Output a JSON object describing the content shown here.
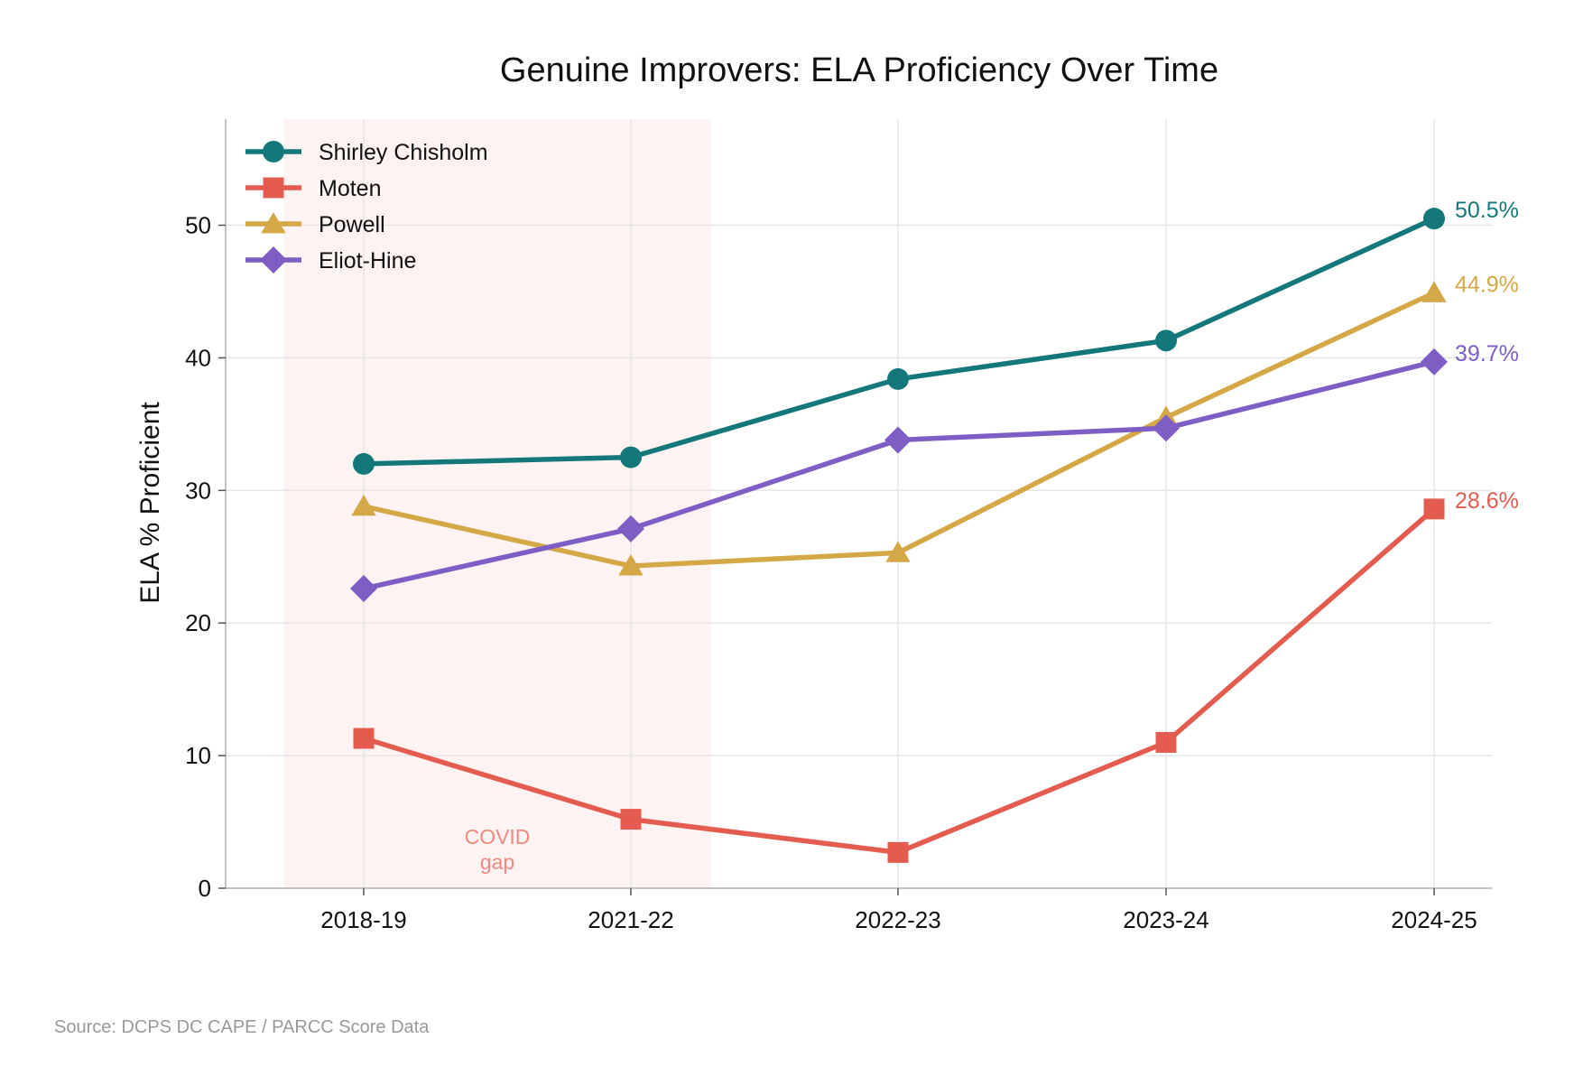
{
  "chart_data": {
    "type": "line",
    "title": "Genuine Improvers: ELA Proficiency Over Time",
    "xlabel": "",
    "ylabel": "ELA % Proficient",
    "categories": [
      "2018-19",
      "2021-22",
      "2022-23",
      "2023-24",
      "2024-25"
    ],
    "ylim": [
      0,
      58
    ],
    "yticks": [
      0,
      10,
      20,
      30,
      40,
      50
    ],
    "grid": true,
    "legend_position": "top-left",
    "series": [
      {
        "name": "Shirley Chisholm",
        "values": [
          32.0,
          32.5,
          38.4,
          41.3,
          50.5
        ],
        "color": "#14787a",
        "marker": "circle",
        "end_label": "50.5%"
      },
      {
        "name": "Moten",
        "values": [
          11.3,
          5.2,
          2.7,
          11.0,
          28.6
        ],
        "color": "#e45c4f",
        "marker": "square",
        "end_label": "28.6%"
      },
      {
        "name": "Powell",
        "values": [
          28.8,
          24.3,
          25.3,
          35.5,
          44.9
        ],
        "color": "#d4a847",
        "marker": "triangle",
        "end_label": "44.9%"
      },
      {
        "name": "Eliot-Hine",
        "values": [
          22.6,
          27.1,
          33.8,
          34.7,
          39.7
        ],
        "color": "#7e5dc4",
        "marker": "diamond",
        "end_label": "39.7%"
      }
    ],
    "shaded_region": {
      "from_category": "2018-19",
      "to_category": "2021-22",
      "label_line1": "COVID",
      "label_line2": "gap",
      "color": "#fdf3f2"
    }
  },
  "source_note": "Source: DCPS DC CAPE / PARCC Score Data"
}
